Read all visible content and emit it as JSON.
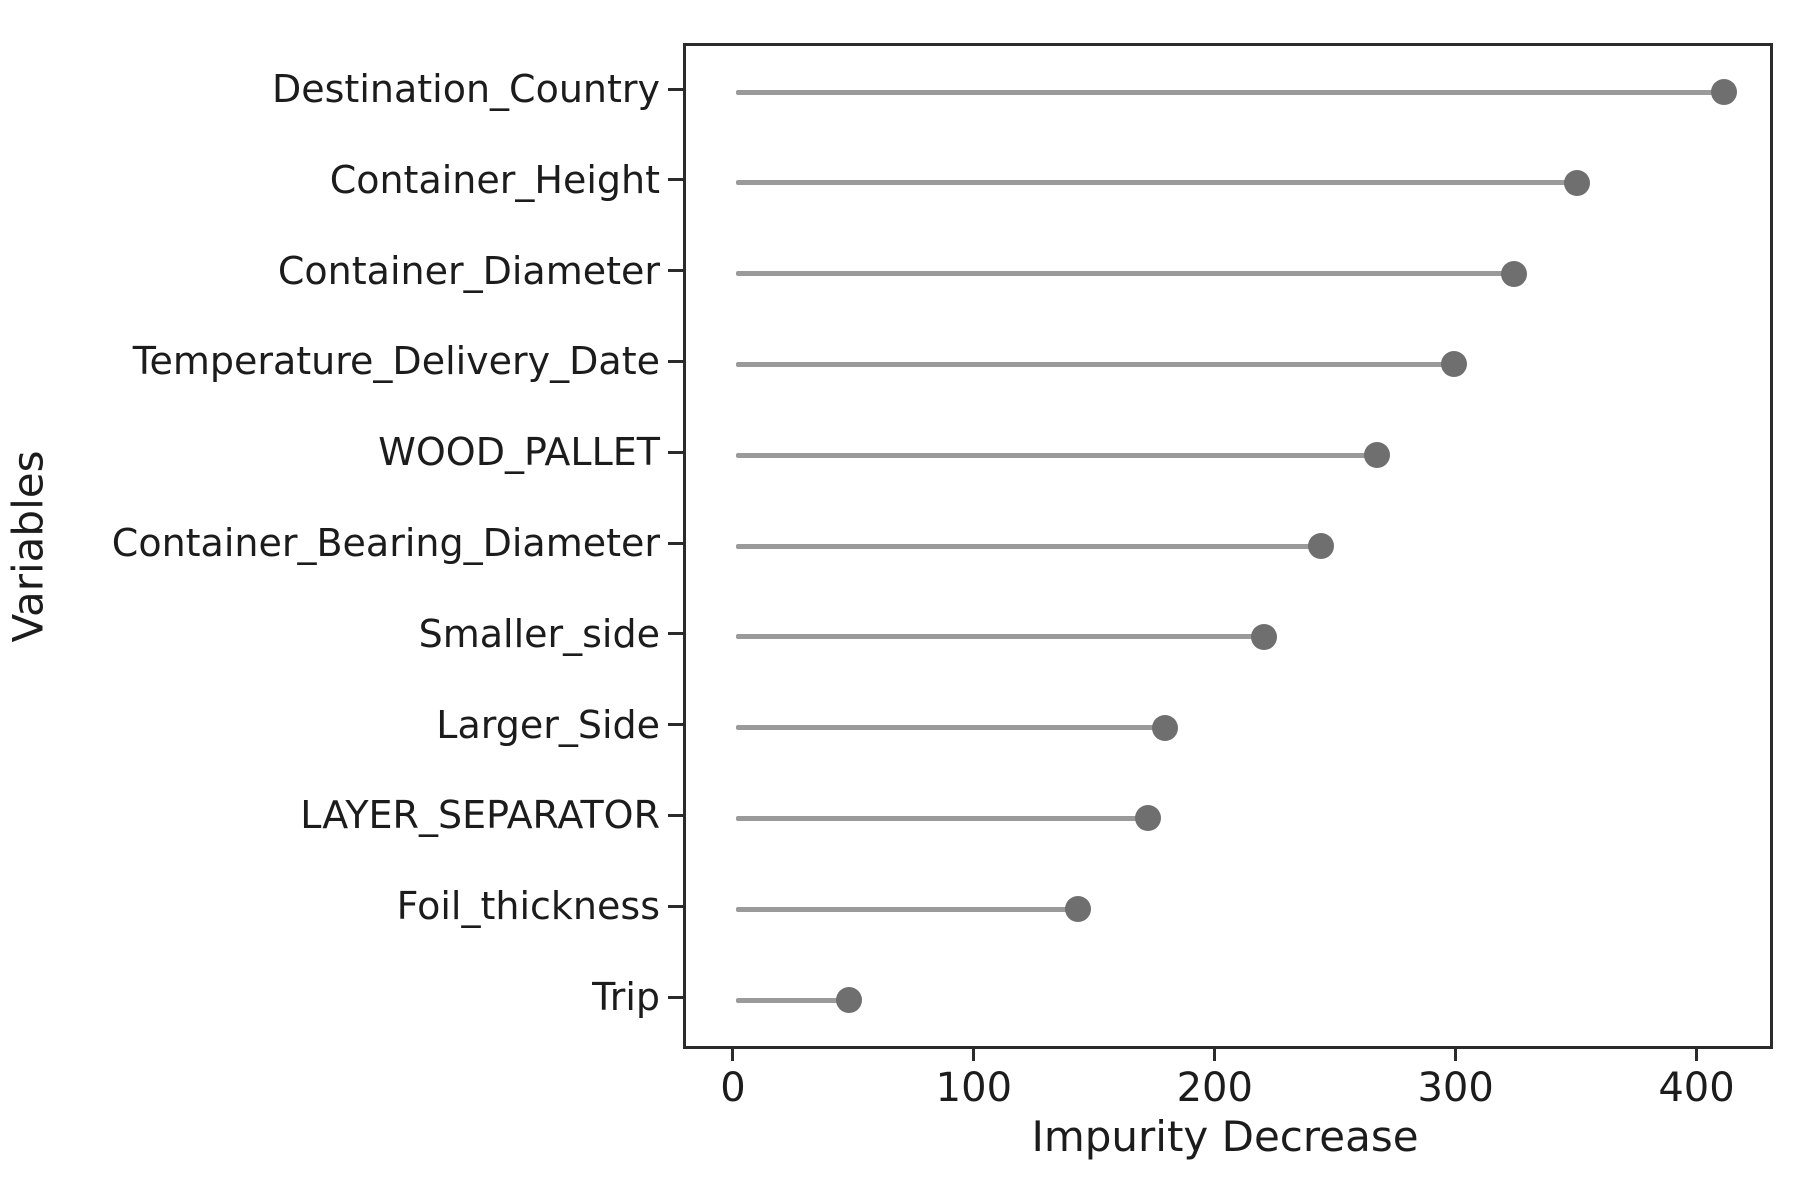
{
  "chart_data": {
    "type": "scatter",
    "variant": "horizontal-lollipop",
    "title": "",
    "xlabel": "Impurity Decrease",
    "ylabel": "Variables",
    "categories": [
      "Destination_Country",
      "Container_Height",
      "Container_Diameter",
      "Temperature_Delivery_Date",
      "WOOD_PALLET",
      "Container_Bearing_Diameter",
      "Smaller_side",
      "Larger_Side",
      "LAYER_SEPARATOR",
      "Foil_thickness",
      "Trip"
    ],
    "values": [
      410,
      349,
      323,
      298,
      266,
      243,
      219,
      178,
      171,
      142,
      47
    ],
    "stem_start": 0,
    "x_ticks": [
      0,
      100,
      200,
      300,
      400
    ],
    "xlim": [
      -20.75,
      429.25
    ],
    "grid": false,
    "legend": null,
    "colors": {
      "stem": "#9a9a9a",
      "dot": "#6f6f6f",
      "axis": "#2b2b2b",
      "text": "#1c1c1c",
      "background": "#ffffff"
    }
  }
}
